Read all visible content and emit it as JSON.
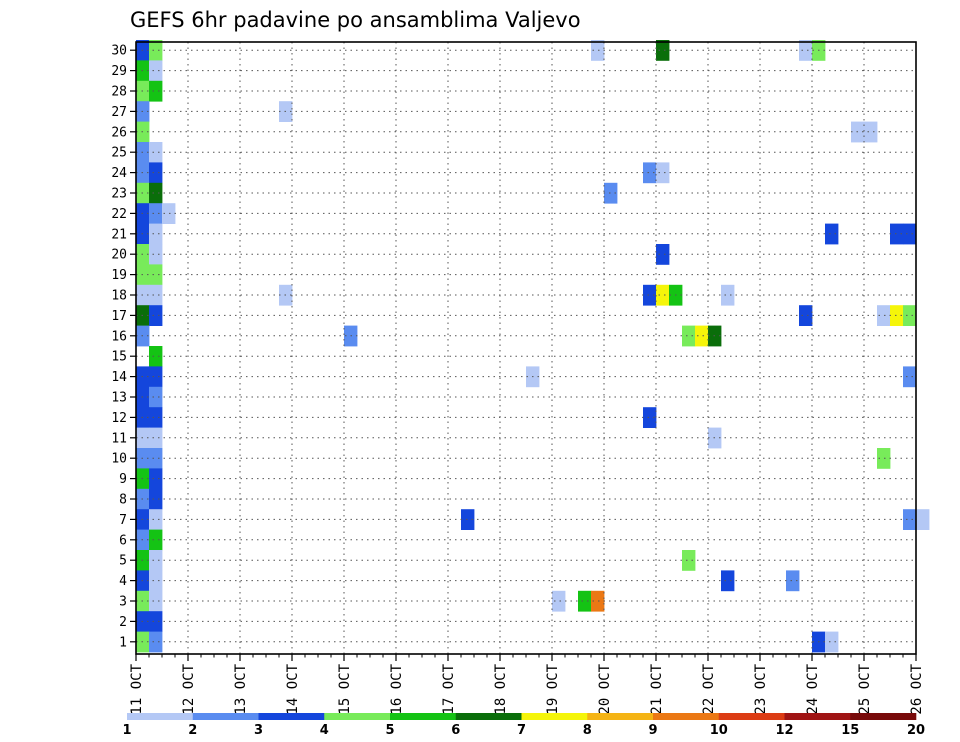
{
  "chart_data": {
    "type": "heatmap",
    "title": "GEFS 6hr padavine po ansamblima Valjevo",
    "x_tick_labels": [
      "11 OCT",
      "12 OCT",
      "13 OCT",
      "14 OCT",
      "15 OCT",
      "16 OCT",
      "17 OCT",
      "18 OCT",
      "19 OCT",
      "20 OCT",
      "21 OCT",
      "22 OCT",
      "23 OCT",
      "24 OCT",
      "25 OCT",
      "26 OCT"
    ],
    "y_tick_labels": [
      "1",
      "2",
      "3",
      "4",
      "5",
      "6",
      "7",
      "8",
      "9",
      "10",
      "11",
      "12",
      "13",
      "14",
      "15",
      "16",
      "17",
      "18",
      "19",
      "20",
      "21",
      "22",
      "23",
      "24",
      "25",
      "26",
      "27",
      "28",
      "29",
      "30"
    ],
    "xlim": [
      "11 OCT",
      "26 OCT"
    ],
    "ylim": [
      0,
      30
    ],
    "grid": true,
    "colorbar": {
      "labels": [
        "1",
        "2",
        "3",
        "4",
        "5",
        "6",
        "7",
        "8",
        "9",
        "10",
        "12",
        "15",
        "20"
      ],
      "colors": [
        "#b4c8f5",
        "#5a8cf0",
        "#1446dc",
        "#78eb5a",
        "#14c314",
        "#0a6e0a",
        "#f5f50a",
        "#f5b414",
        "#eb7814",
        "#dc3c14",
        "#a01414",
        "#780a0a"
      ]
    },
    "color_levels_note": "",
    "cells": [
      {
        "m": 30,
        "d": "11",
        "s": 0,
        "c": 3
      },
      {
        "m": 30,
        "d": "11",
        "s": 1,
        "c": 4
      },
      {
        "m": 30,
        "d": "19",
        "s": 3,
        "c": 1
      },
      {
        "m": 30,
        "d": "20",
        "s": 4,
        "c": 6
      },
      {
        "m": 30,
        "d": "23",
        "s": 3,
        "c": 1
      },
      {
        "m": 30,
        "d": "23",
        "s": 4,
        "c": 4
      },
      {
        "m": 29,
        "d": "11",
        "s": 0,
        "c": 5
      },
      {
        "m": 29,
        "d": "11",
        "s": 1,
        "c": 1
      },
      {
        "m": 28,
        "d": "11",
        "s": 0,
        "c": 4
      },
      {
        "m": 28,
        "d": "11",
        "s": 1,
        "c": 5
      },
      {
        "m": 27,
        "d": "11",
        "s": 0,
        "c": 2
      },
      {
        "m": 27,
        "d": "13",
        "s": 3,
        "c": 1
      },
      {
        "m": 26,
        "d": "11",
        "s": 0,
        "c": 4
      },
      {
        "m": 26,
        "d": "24",
        "s": 3,
        "c": 1
      },
      {
        "m": 26,
        "d": "25",
        "s": 0,
        "c": 1
      },
      {
        "m": 25,
        "d": "11",
        "s": 0,
        "c": 2
      },
      {
        "m": 25,
        "d": "11",
        "s": 1,
        "c": 1
      },
      {
        "m": 24,
        "d": "11",
        "s": 0,
        "c": 2
      },
      {
        "m": 24,
        "d": "11",
        "s": 1,
        "c": 3
      },
      {
        "m": 24,
        "d": "20",
        "s": 3,
        "c": 2
      },
      {
        "m": 24,
        "d": "21",
        "s": 0,
        "c": 1
      },
      {
        "m": 23,
        "d": "11",
        "s": 0,
        "c": 4
      },
      {
        "m": 23,
        "d": "11",
        "s": 1,
        "c": 6
      },
      {
        "m": 23,
        "d": "20",
        "s": 0,
        "c": 2
      },
      {
        "m": 22,
        "d": "11",
        "s": 0,
        "c": 3
      },
      {
        "m": 22,
        "d": "11",
        "s": 1,
        "c": 2
      },
      {
        "m": 22,
        "d": "11",
        "s": 2,
        "c": 1
      },
      {
        "m": 21,
        "d": "11",
        "s": 0,
        "c": 3
      },
      {
        "m": 21,
        "d": "11",
        "s": 1,
        "c": 1
      },
      {
        "m": 21,
        "d": "24",
        "s": 1,
        "c": 3
      },
      {
        "m": 21,
        "d": "25",
        "s": 2,
        "c": 3
      },
      {
        "m": 21,
        "d": "25",
        "s": 3,
        "c": 3
      },
      {
        "m": 20,
        "d": "11",
        "s": 0,
        "c": 4
      },
      {
        "m": 20,
        "d": "11",
        "s": 1,
        "c": 1
      },
      {
        "m": 20,
        "d": "21",
        "s": 0,
        "c": 3
      },
      {
        "m": 19,
        "d": "11",
        "s": 0,
        "c": 4
      },
      {
        "m": 19,
        "d": "11",
        "s": 1,
        "c": 4
      },
      {
        "m": 18,
        "d": "11",
        "s": 0,
        "c": 1
      },
      {
        "m": 18,
        "d": "11",
        "s": 1,
        "c": 1
      },
      {
        "m": 18,
        "d": "13",
        "s": 3,
        "c": 1
      },
      {
        "m": 18,
        "d": "20",
        "s": 3,
        "c": 3
      },
      {
        "m": 18,
        "d": "21",
        "s": 0,
        "c": 7
      },
      {
        "m": 18,
        "d": "21",
        "s": 1,
        "c": 5
      },
      {
        "m": 18,
        "d": "22",
        "s": 1,
        "c": 1
      },
      {
        "m": 17,
        "d": "11",
        "s": 0,
        "c": 6
      },
      {
        "m": 17,
        "d": "11",
        "s": 1,
        "c": 3
      },
      {
        "m": 17,
        "d": "23",
        "s": 3,
        "c": 3
      },
      {
        "m": 17,
        "d": "25",
        "s": 1,
        "c": 1
      },
      {
        "m": 17,
        "d": "25",
        "s": 2,
        "c": 7
      },
      {
        "m": 17,
        "d": "25",
        "s": 3,
        "c": 4
      },
      {
        "m": 16,
        "d": "11",
        "s": 0,
        "c": 2
      },
      {
        "m": 16,
        "d": "15",
        "s": 0,
        "c": 2
      },
      {
        "m": 16,
        "d": "21",
        "s": 2,
        "c": 4
      },
      {
        "m": 16,
        "d": "21",
        "s": 3,
        "c": 7
      },
      {
        "m": 16,
        "d": "22",
        "s": 0,
        "c": 6
      },
      {
        "m": 15,
        "d": "11",
        "s": 1,
        "c": 5
      },
      {
        "m": 14,
        "d": "11",
        "s": 0,
        "c": 3
      },
      {
        "m": 14,
        "d": "11",
        "s": 1,
        "c": 3
      },
      {
        "m": 14,
        "d": "18",
        "s": 2,
        "c": 1
      },
      {
        "m": 14,
        "d": "25",
        "s": 3,
        "c": 2
      },
      {
        "m": 13,
        "d": "11",
        "s": 0,
        "c": 3
      },
      {
        "m": 13,
        "d": "11",
        "s": 1,
        "c": 2
      },
      {
        "m": 12,
        "d": "11",
        "s": 0,
        "c": 3
      },
      {
        "m": 12,
        "d": "11",
        "s": 1,
        "c": 3
      },
      {
        "m": 12,
        "d": "20",
        "s": 3,
        "c": 3
      },
      {
        "m": 11,
        "d": "11",
        "s": 0,
        "c": 1
      },
      {
        "m": 11,
        "d": "11",
        "s": 1,
        "c": 1
      },
      {
        "m": 11,
        "d": "22",
        "s": 0,
        "c": 1
      },
      {
        "m": 10,
        "d": "11",
        "s": 0,
        "c": 2
      },
      {
        "m": 10,
        "d": "11",
        "s": 1,
        "c": 2
      },
      {
        "m": 10,
        "d": "25",
        "s": 1,
        "c": 4
      },
      {
        "m": 9,
        "d": "11",
        "s": 0,
        "c": 5
      },
      {
        "m": 9,
        "d": "11",
        "s": 1,
        "c": 3
      },
      {
        "m": 8,
        "d": "11",
        "s": 0,
        "c": 2
      },
      {
        "m": 8,
        "d": "11",
        "s": 1,
        "c": 3
      },
      {
        "m": 7,
        "d": "11",
        "s": 0,
        "c": 3
      },
      {
        "m": 7,
        "d": "11",
        "s": 1,
        "c": 1
      },
      {
        "m": 7,
        "d": "17",
        "s": 1,
        "c": 3
      },
      {
        "m": 7,
        "d": "25",
        "s": 3,
        "c": 2
      },
      {
        "m": 7,
        "d": "26",
        "s": 0,
        "c": 1
      },
      {
        "m": 6,
        "d": "11",
        "s": 0,
        "c": 2
      },
      {
        "m": 6,
        "d": "11",
        "s": 1,
        "c": 5
      },
      {
        "m": 5,
        "d": "11",
        "s": 0,
        "c": 5
      },
      {
        "m": 5,
        "d": "11",
        "s": 1,
        "c": 1
      },
      {
        "m": 5,
        "d": "21",
        "s": 2,
        "c": 4
      },
      {
        "m": 4,
        "d": "11",
        "s": 0,
        "c": 3
      },
      {
        "m": 4,
        "d": "11",
        "s": 1,
        "c": 1
      },
      {
        "m": 4,
        "d": "22",
        "s": 1,
        "c": 3
      },
      {
        "m": 4,
        "d": "23",
        "s": 2,
        "c": 2
      },
      {
        "m": 3,
        "d": "11",
        "s": 0,
        "c": 4
      },
      {
        "m": 3,
        "d": "11",
        "s": 1,
        "c": 1
      },
      {
        "m": 3,
        "d": "19",
        "s": 0,
        "c": 1
      },
      {
        "m": 3,
        "d": "19",
        "s": 2,
        "c": 5
      },
      {
        "m": 3,
        "d": "19",
        "s": 3,
        "c": 9
      },
      {
        "m": 2,
        "d": "11",
        "s": 0,
        "c": 3
      },
      {
        "m": 2,
        "d": "11",
        "s": 1,
        "c": 3
      },
      {
        "m": 1,
        "d": "11",
        "s": 0,
        "c": 4
      },
      {
        "m": 1,
        "d": "11",
        "s": 1,
        "c": 2
      },
      {
        "m": 1,
        "d": "24",
        "s": 0,
        "c": 3
      },
      {
        "m": 1,
        "d": "24",
        "s": 1,
        "c": 1
      }
    ]
  }
}
